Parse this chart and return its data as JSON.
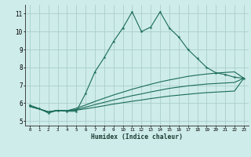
{
  "xlabel": "Humidex (Indice chaleur)",
  "background_color": "#ceecea",
  "grid_color": "#aacfcc",
  "line_color": "#1a6b5a",
  "xlim": [
    -0.5,
    23.5
  ],
  "ylim": [
    4.75,
    11.5
  ],
  "xticks": [
    0,
    1,
    2,
    3,
    4,
    5,
    6,
    7,
    8,
    9,
    10,
    11,
    12,
    13,
    14,
    15,
    16,
    17,
    18,
    19,
    20,
    21,
    22,
    23
  ],
  "yticks": [
    5,
    6,
    7,
    8,
    9,
    10,
    11
  ],
  "main_x": [
    0,
    1,
    2,
    3,
    4,
    5,
    6,
    7,
    8,
    9,
    10,
    11,
    12,
    13,
    14,
    15,
    16,
    17,
    18,
    19,
    20,
    21,
    22,
    23
  ],
  "main_y": [
    5.9,
    5.7,
    5.45,
    5.6,
    5.55,
    5.55,
    6.55,
    7.75,
    8.55,
    9.45,
    10.2,
    11.1,
    10.0,
    10.25,
    11.1,
    10.2,
    9.7,
    9.0,
    8.5,
    8.0,
    7.7,
    7.6,
    7.45,
    7.4
  ],
  "reg1_x": [
    0,
    1,
    2,
    3,
    4,
    5,
    6,
    7,
    8,
    9,
    10,
    11,
    12,
    13,
    14,
    15,
    16,
    17,
    18,
    19,
    20,
    21,
    22,
    23
  ],
  "reg1_y": [
    5.82,
    5.68,
    5.52,
    5.6,
    5.58,
    5.72,
    5.9,
    6.1,
    6.28,
    6.46,
    6.62,
    6.78,
    6.92,
    7.06,
    7.19,
    7.3,
    7.4,
    7.5,
    7.57,
    7.63,
    7.68,
    7.72,
    7.75,
    7.4
  ],
  "reg2_x": [
    0,
    1,
    2,
    3,
    4,
    5,
    6,
    7,
    8,
    9,
    10,
    11,
    12,
    13,
    14,
    15,
    16,
    17,
    18,
    19,
    20,
    21,
    22,
    23
  ],
  "reg2_y": [
    5.82,
    5.68,
    5.52,
    5.6,
    5.58,
    5.65,
    5.78,
    5.92,
    6.05,
    6.18,
    6.3,
    6.42,
    6.52,
    6.63,
    6.73,
    6.83,
    6.9,
    6.97,
    7.02,
    7.07,
    7.1,
    7.13,
    7.16,
    7.4
  ],
  "reg3_x": [
    0,
    1,
    2,
    3,
    4,
    5,
    6,
    7,
    8,
    9,
    10,
    11,
    12,
    13,
    14,
    15,
    16,
    17,
    18,
    19,
    20,
    21,
    22,
    23
  ],
  "reg3_y": [
    5.82,
    5.68,
    5.52,
    5.6,
    5.58,
    5.61,
    5.69,
    5.77,
    5.86,
    5.95,
    6.03,
    6.11,
    6.18,
    6.26,
    6.33,
    6.4,
    6.45,
    6.5,
    6.55,
    6.59,
    6.62,
    6.65,
    6.68,
    7.4
  ]
}
